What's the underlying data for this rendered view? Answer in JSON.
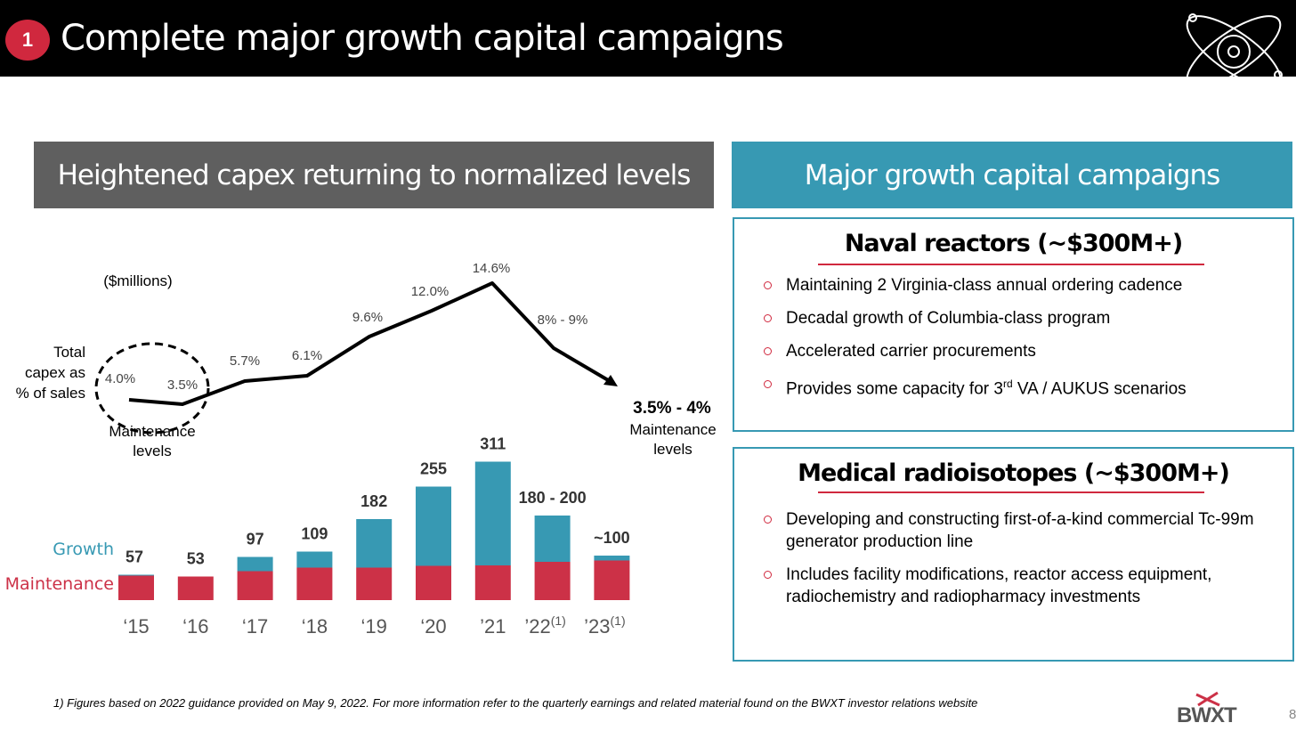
{
  "header": {
    "badge": "1",
    "title": "Complete major growth capital campaigns"
  },
  "left_panel": {
    "heading": "Heightened capex returning to normalized levels",
    "units": "($millions)",
    "line_label_lines": [
      "Total",
      "capex as",
      "% of sales"
    ],
    "maintenance_note_left": [
      "Maintenance",
      "levels"
    ],
    "maintenance_note_right": [
      "3.5% - 4%",
      "Maintenance",
      "levels"
    ],
    "legend_growth": "Growth",
    "legend_maintenance": "Maintenance"
  },
  "chart_data": {
    "type": "bar",
    "stacked": true,
    "categories": [
      "‘15",
      "‘16",
      "‘17",
      "‘18",
      "‘19",
      "‘20",
      "’21",
      "’22",
      "’23"
    ],
    "category_superscripts": [
      "",
      "",
      "",
      "",
      "",
      "",
      "",
      "(1)",
      "(1)"
    ],
    "series": [
      {
        "name": "Maintenance",
        "values": [
          55,
          53,
          65,
          73,
          73,
          77,
          78,
          86,
          89
        ]
      },
      {
        "name": "Growth",
        "values": [
          2,
          0,
          32,
          36,
          109,
          178,
          233,
          104,
          11
        ]
      }
    ],
    "total_labels": [
      "57",
      "53",
      "97",
      "109",
      "182",
      "255",
      "311",
      "180 - 200",
      "~100"
    ],
    "line_series": {
      "name": "Total capex as % of sales",
      "values": [
        4.0,
        3.5,
        5.7,
        6.1,
        9.6,
        12.0,
        14.6,
        8.5,
        3.75
      ],
      "labels": [
        "4.0%",
        "3.5%",
        "5.7%",
        "6.1%",
        "9.6%",
        "12.0%",
        "14.6%",
        "8% - 9%",
        "3.5% - 4%"
      ]
    },
    "ylim": [
      0,
      320
    ],
    "colors": {
      "maintenance": "#cc3147",
      "growth": "#3799b3",
      "line": "#000000"
    }
  },
  "naval": {
    "title": "Naval reactors (~$300M+)",
    "bullets": [
      "Maintaining 2 Virginia-class annual ordering cadence",
      "Decadal growth of Columbia-class program",
      "Accelerated carrier procurements"
    ],
    "bullet4_pre": "Provides some capacity for 3",
    "bullet4_sup": "rd",
    "bullet4_post": " VA / AUKUS scenarios"
  },
  "medical": {
    "title": "Medical radioisotopes (~$300M+)",
    "bullets": [
      "Developing and constructing first-of-a-kind commercial Tc-99m generator production line",
      "Includes facility modifications, reactor access equipment, radiochemistry and radiopharmacy investments"
    ]
  },
  "footnote": "1) Figures based on 2022 guidance provided on May 9, 2022. For more information refer to the quarterly earnings and related material found on the BWXT investor relations website",
  "logo": "BWXT",
  "page_number": "8"
}
